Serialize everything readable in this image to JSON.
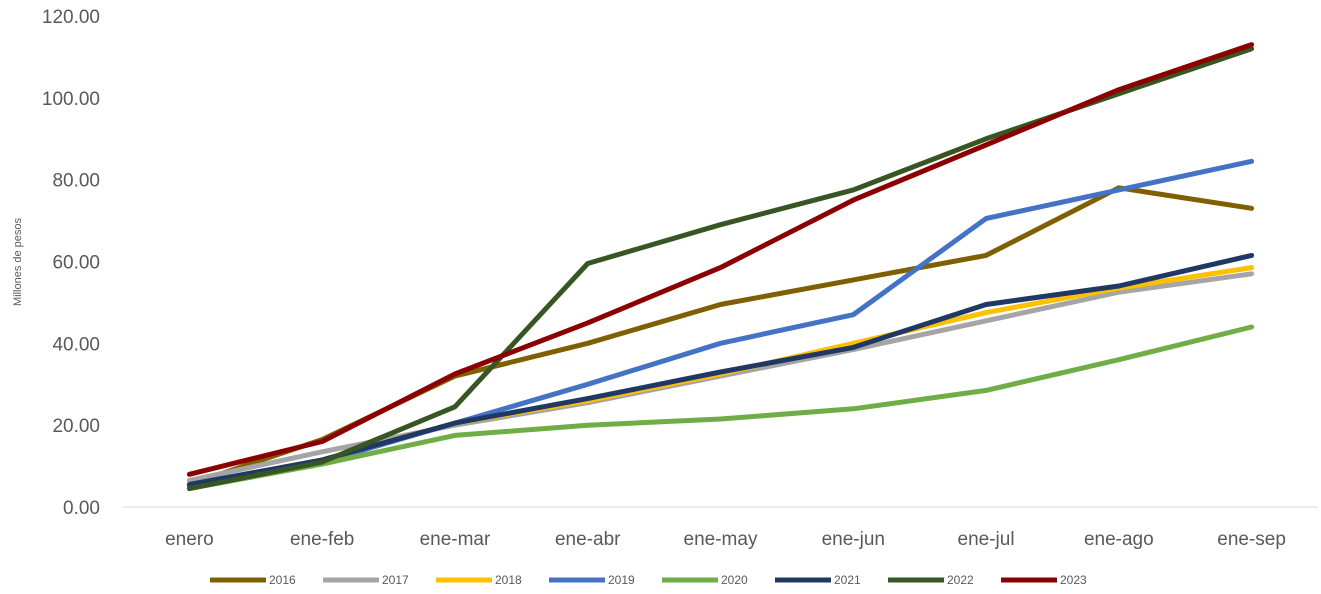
{
  "chart_data": {
    "type": "line",
    "title": "",
    "xlabel": "",
    "ylabel": "Millones de pesos",
    "ylim": [
      0,
      120
    ],
    "yticks": [
      "0.00",
      "20.00",
      "40.00",
      "60.00",
      "80.00",
      "100.00",
      "120.00"
    ],
    "categories": [
      "enero",
      "ene-feb",
      "ene-mar",
      "ene-abr",
      "ene-may",
      "ene-jun",
      "ene-jul",
      "ene-ago",
      "ene-sep"
    ],
    "grid": false,
    "legend_position": "bottom",
    "series": [
      {
        "name": "2016",
        "color": "#7F6000",
        "values": [
          5.5,
          16.5,
          32.0,
          40.0,
          49.5,
          55.5,
          61.5,
          78.0,
          73.0
        ]
      },
      {
        "name": "2017",
        "color": "#A5A5A5",
        "values": [
          6.5,
          13.5,
          20.0,
          25.5,
          32.0,
          38.5,
          45.5,
          52.5,
          57.0
        ]
      },
      {
        "name": "2018",
        "color": "#FFC000",
        "values": [
          5.0,
          11.5,
          20.5,
          26.0,
          32.5,
          40.0,
          47.5,
          53.5,
          58.5
        ]
      },
      {
        "name": "2019",
        "color": "#4472C4",
        "values": [
          5.0,
          11.0,
          20.5,
          30.0,
          40.0,
          47.0,
          70.5,
          77.5,
          84.5
        ]
      },
      {
        "name": "2020",
        "color": "#70AD47",
        "values": [
          4.5,
          10.5,
          17.5,
          20.0,
          21.5,
          24.0,
          28.5,
          36.0,
          44.0
        ]
      },
      {
        "name": "2021",
        "color": "#203864",
        "values": [
          5.5,
          11.5,
          20.5,
          26.5,
          33.0,
          39.0,
          49.5,
          54.0,
          61.5
        ]
      },
      {
        "name": "2022",
        "color": "#375623",
        "values": [
          4.5,
          11.0,
          24.5,
          59.5,
          69.0,
          77.5,
          90.0,
          101.0,
          112.0
        ]
      },
      {
        "name": "2023",
        "color": "#8B0000",
        "values": [
          8.0,
          16.0,
          32.5,
          45.0,
          58.5,
          75.0,
          88.5,
          102.0,
          113.0
        ]
      }
    ]
  }
}
